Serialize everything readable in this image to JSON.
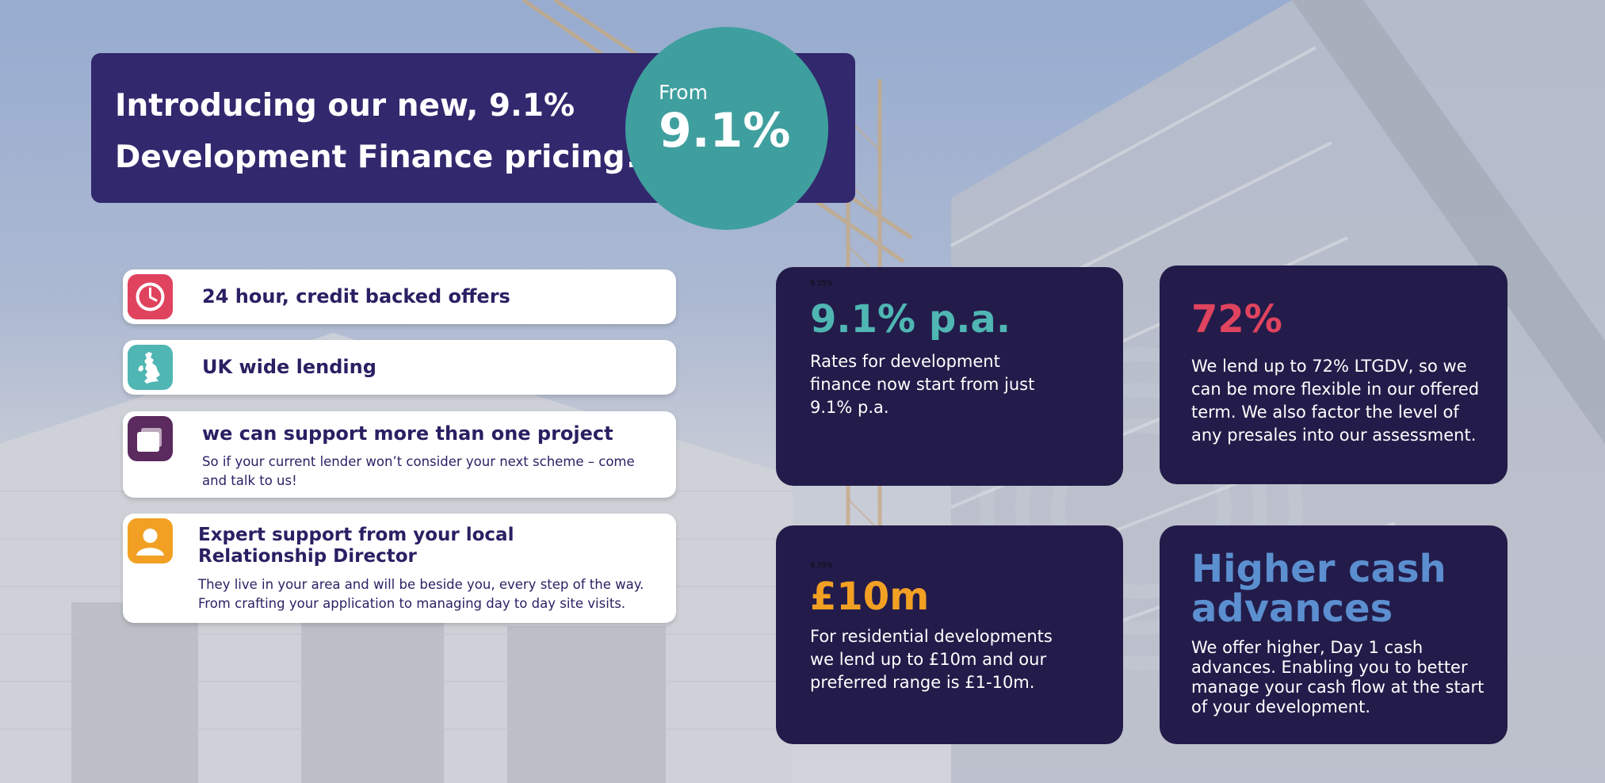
{
  "banner": {
    "title_line1": "Introducing our new, 9.1%",
    "title_line2": "Development Finance pricing!",
    "from_label": "From",
    "rate_value": "9.1%"
  },
  "features": [
    {
      "title": "24 hour, credit backed offers",
      "icon": "clock-icon",
      "color": "#e0435e"
    },
    {
      "title": "UK wide lending",
      "icon": "uk-map-icon",
      "color": "#4fb6b3"
    },
    {
      "title": "we can support more than one project",
      "desc": "So if your current lender won’t consider your next scheme – come and talk to us!",
      "icon": "folders-icon",
      "color": "#5b2a5e"
    },
    {
      "title": "Expert support from your local Relationship Director",
      "desc": "They live in your area and will be beside you, every step of the way. From crafting your application to managing day to day site visits.",
      "icon": "person-icon",
      "color": "#f2a023"
    }
  ],
  "cards": [
    {
      "tiny": "9.35%",
      "value": "9.1% p.a.",
      "color": "#4fb6b3",
      "text": "Rates for development finance now start from just 9.1% p.a."
    },
    {
      "value": "72%",
      "color": "#e0435e",
      "text": "We lend up to 72% LTGDV, so we can be more flexible in our offered term. We also factor the level of any presales into our assessment."
    },
    {
      "tiny": "9.35%",
      "value": "£10m",
      "color": "#f2a023",
      "text": "For residential developments we lend up to £10m and our preferred range is £1-10m."
    },
    {
      "value_line1": "Higher cash",
      "value_line2": "advances",
      "color": "#5b8fd0",
      "text": "We offer higher, Day 1 cash advances. Enabling you to better manage your cash flow at the start of your development."
    }
  ]
}
